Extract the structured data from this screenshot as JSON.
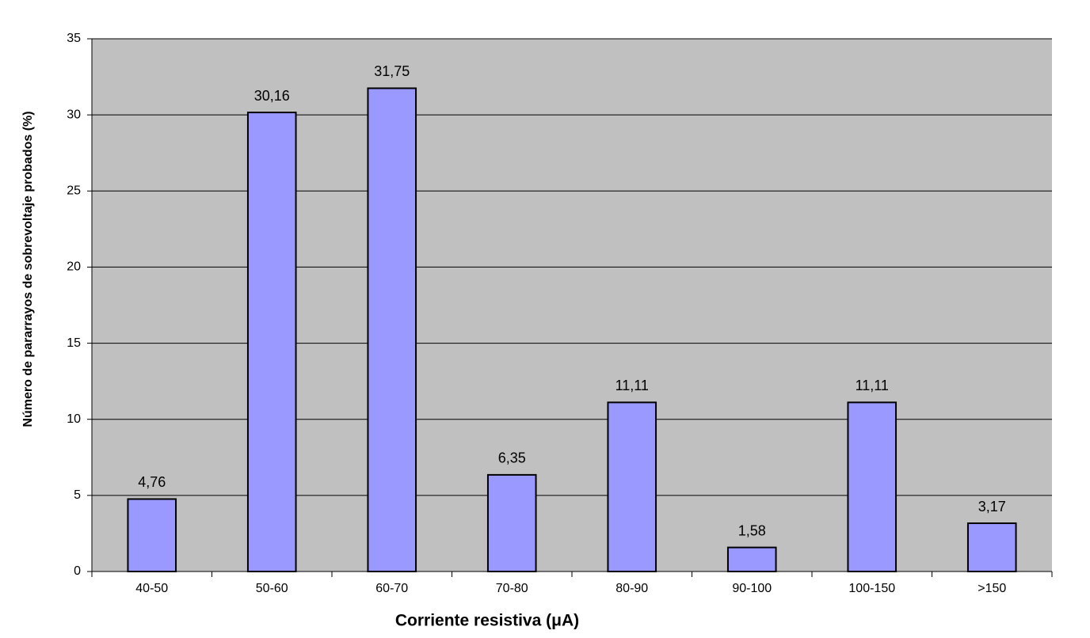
{
  "chart_data": {
    "type": "bar",
    "x_label": "Corriente resistiva (μA)",
    "y_label": "Número de pararrayos de sobrevoltaje probados (%)",
    "categories": [
      "40-50",
      "50-60",
      "60-70",
      "70-80",
      "80-90",
      "90-100",
      "100-150",
      ">150"
    ],
    "values": [
      4.76,
      30.16,
      31.75,
      6.35,
      11.11,
      1.58,
      11.11,
      3.17
    ],
    "value_labels": [
      "4,76",
      "30,16",
      "31,75",
      "6,35",
      "11,11",
      "1,58",
      "11,11",
      "3,17"
    ],
    "color": "#9999ff",
    "ylim": [
      0,
      35
    ],
    "yticks": [
      0,
      5,
      10,
      15,
      20,
      25,
      30,
      35
    ],
    "grid": true
  }
}
